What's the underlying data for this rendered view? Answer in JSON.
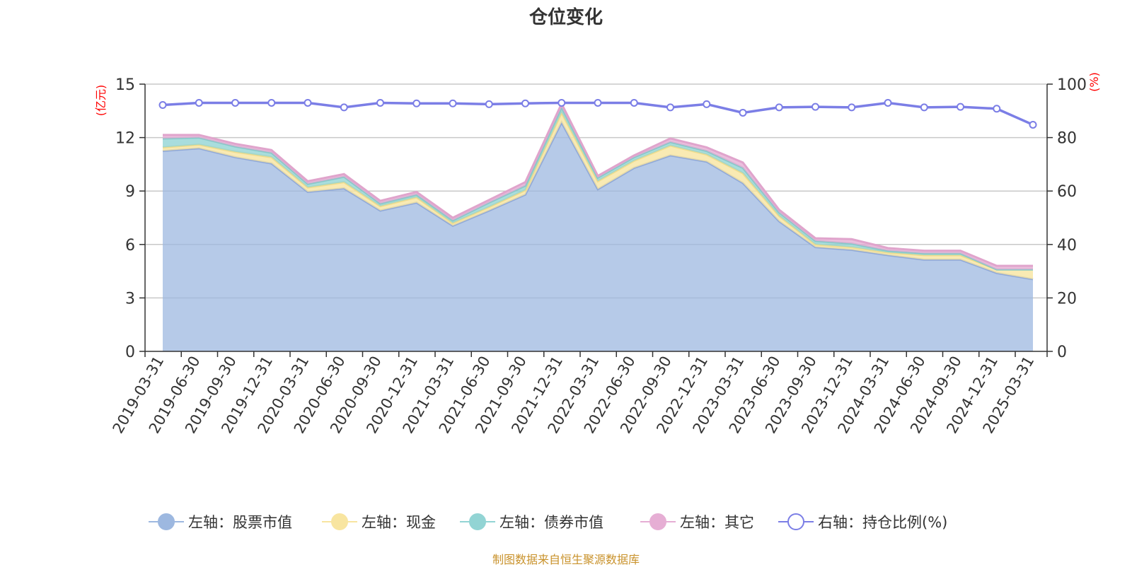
{
  "chart_data": {
    "type": "area",
    "title": "仓位变化",
    "left_axis_unit": "(亿元)",
    "right_axis_unit": "(%)",
    "ylim_left": [
      0,
      15
    ],
    "yticks_left": [
      "0",
      "3",
      "6",
      "9",
      "12",
      "15"
    ],
    "ylim_right": [
      0,
      100
    ],
    "yticks_right": [
      "0",
      "20",
      "40",
      "60",
      "80",
      "100"
    ],
    "grid": true,
    "legend_position": "bottom",
    "x": [
      "2019-03-31",
      "2019-06-30",
      "2019-09-30",
      "2019-12-31",
      "2020-03-31",
      "2020-06-30",
      "2020-09-30",
      "2020-12-31",
      "2021-03-31",
      "2021-06-30",
      "2021-09-30",
      "2021-12-31",
      "2022-03-31",
      "2022-06-30",
      "2022-09-30",
      "2022-12-31",
      "2023-03-31",
      "2023-06-30",
      "2023-09-30",
      "2023-12-31",
      "2024-03-31",
      "2024-06-30",
      "2024-09-30",
      "2024-12-31",
      "2025-03-31"
    ],
    "series": [
      {
        "name": "左轴：股票市值",
        "axis": "left",
        "stacked": true,
        "color": "#9db8e0",
        "values": [
          11.25,
          11.4,
          10.9,
          10.55,
          8.95,
          9.15,
          7.9,
          8.35,
          7.05,
          7.9,
          8.8,
          12.85,
          9.1,
          10.3,
          11.0,
          10.65,
          9.45,
          7.3,
          5.85,
          5.7,
          5.4,
          5.15,
          5.15,
          4.4,
          4.05
        ]
      },
      {
        "name": "左轴：现金",
        "axis": "left",
        "stacked": true,
        "color": "#f8e5a0",
        "values": [
          0.2,
          0.2,
          0.3,
          0.35,
          0.25,
          0.35,
          0.25,
          0.3,
          0.15,
          0.2,
          0.25,
          0.55,
          0.45,
          0.4,
          0.55,
          0.4,
          0.55,
          0.3,
          0.15,
          0.15,
          0.15,
          0.25,
          0.25,
          0.2,
          0.55
        ]
      },
      {
        "name": "左轴：债券市值",
        "axis": "left",
        "stacked": true,
        "color": "#92d4d4",
        "values": [
          0.5,
          0.4,
          0.3,
          0.25,
          0.2,
          0.3,
          0.15,
          0.15,
          0.15,
          0.25,
          0.25,
          0.3,
          0.2,
          0.2,
          0.2,
          0.2,
          0.3,
          0.2,
          0.2,
          0.2,
          0.1,
          0.1,
          0.1,
          0.0,
          0.0
        ]
      },
      {
        "name": "左轴：其它",
        "axis": "left",
        "stacked": true,
        "color": "#e6aed4",
        "values": [
          0.2,
          0.15,
          0.15,
          0.15,
          0.15,
          0.15,
          0.15,
          0.15,
          0.15,
          0.15,
          0.2,
          0.2,
          0.1,
          0.1,
          0.2,
          0.2,
          0.3,
          0.15,
          0.15,
          0.25,
          0.15,
          0.15,
          0.15,
          0.2,
          0.2
        ]
      },
      {
        "name": "右轴：持仓比例(%)",
        "axis": "right",
        "stacked": false,
        "color": "#7b7ee6",
        "values": [
          92.2,
          93.0,
          93.0,
          93.0,
          93.0,
          91.3,
          93.0,
          92.8,
          92.8,
          92.5,
          92.8,
          93.0,
          93.0,
          93.0,
          91.3,
          92.5,
          89.3,
          91.3,
          91.5,
          91.3,
          93.0,
          91.3,
          91.5,
          90.8,
          84.8
        ]
      }
    ]
  },
  "footer": "制图数据来自恒生聚源数据库"
}
